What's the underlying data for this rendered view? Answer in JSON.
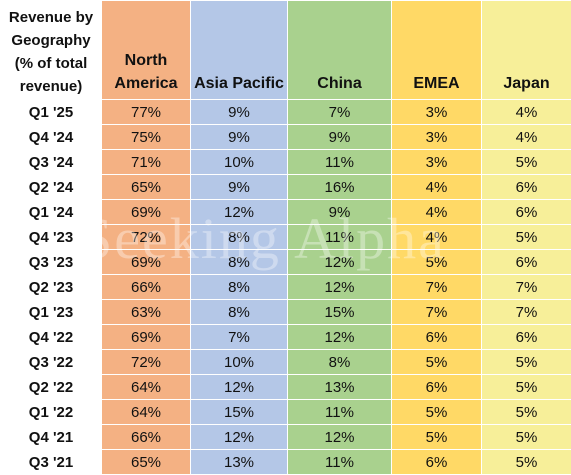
{
  "chart_data": {
    "type": "table",
    "header_label_lines": [
      "Revenue by",
      "Geography",
      "(% of total",
      "revenue)"
    ],
    "columns": [
      {
        "key": "na",
        "label_lines": [
          "North",
          "America"
        ],
        "color": "#f4b183"
      },
      {
        "key": "ap",
        "label_lines": [
          "Asia Pacific"
        ],
        "color": "#b4c7e7"
      },
      {
        "key": "cn",
        "label_lines": [
          "China"
        ],
        "color": "#a9d18e"
      },
      {
        "key": "emea",
        "label_lines": [
          "EMEA"
        ],
        "color": "#ffd966"
      },
      {
        "key": "jp",
        "label_lines": [
          "Japan"
        ],
        "color": "#f7ef99"
      }
    ],
    "rows": [
      {
        "quarter": "Q1 '25",
        "values": [
          "77%",
          "9%",
          "7%",
          "3%",
          "4%"
        ]
      },
      {
        "quarter": "Q4 '24",
        "values": [
          "75%",
          "9%",
          "9%",
          "3%",
          "4%"
        ]
      },
      {
        "quarter": "Q3 '24",
        "values": [
          "71%",
          "10%",
          "11%",
          "3%",
          "5%"
        ]
      },
      {
        "quarter": "Q2 '24",
        "values": [
          "65%",
          "9%",
          "16%",
          "4%",
          "6%"
        ]
      },
      {
        "quarter": "Q1 '24",
        "values": [
          "69%",
          "12%",
          "9%",
          "4%",
          "6%"
        ]
      },
      {
        "quarter": "Q4 '23",
        "values": [
          "72%",
          "8%",
          "11%",
          "4%",
          "5%"
        ]
      },
      {
        "quarter": "Q3 '23",
        "values": [
          "69%",
          "8%",
          "12%",
          "5%",
          "6%"
        ]
      },
      {
        "quarter": "Q2 '23",
        "values": [
          "66%",
          "8%",
          "12%",
          "7%",
          "7%"
        ]
      },
      {
        "quarter": "Q1 '23",
        "values": [
          "63%",
          "8%",
          "15%",
          "7%",
          "7%"
        ]
      },
      {
        "quarter": "Q4 '22",
        "values": [
          "69%",
          "7%",
          "12%",
          "6%",
          "6%"
        ]
      },
      {
        "quarter": "Q3 '22",
        "values": [
          "72%",
          "10%",
          "8%",
          "5%",
          "5%"
        ]
      },
      {
        "quarter": "Q2 '22",
        "values": [
          "64%",
          "12%",
          "13%",
          "6%",
          "5%"
        ]
      },
      {
        "quarter": "Q1 '22",
        "values": [
          "64%",
          "15%",
          "11%",
          "5%",
          "5%"
        ]
      },
      {
        "quarter": "Q4 '21",
        "values": [
          "66%",
          "12%",
          "12%",
          "5%",
          "5%"
        ]
      },
      {
        "quarter": "Q3 '21",
        "values": [
          "65%",
          "13%",
          "11%",
          "6%",
          "5%"
        ]
      }
    ]
  },
  "watermark": "Seeking Alpha"
}
